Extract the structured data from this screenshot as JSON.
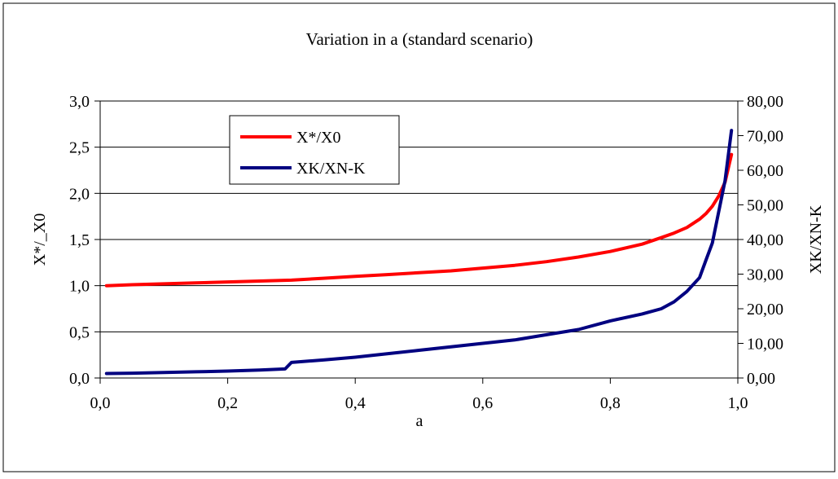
{
  "chart_data": {
    "type": "line",
    "title": "Variation in a (standard scenario)",
    "xlabel": "a",
    "ylabel_left": "X*/_X0",
    "ylabel_right": "XK/XN-K",
    "xlim": [
      0.0,
      1.0
    ],
    "ylim_left": [
      0.0,
      3.0
    ],
    "ylim_right": [
      0.0,
      80.0
    ],
    "x_ticks": [
      "0,0",
      "0,2",
      "0,4",
      "0,6",
      "0,8",
      "1,0"
    ],
    "y_left_ticks": [
      "0,0",
      "0,5",
      "1,0",
      "1,5",
      "2,0",
      "2,5",
      "3,0"
    ],
    "y_right_ticks": [
      "0,00",
      "10,00",
      "20,00",
      "30,00",
      "40,00",
      "50,00",
      "60,00",
      "70,00",
      "80,00"
    ],
    "grid": "horizontal",
    "legend_position": "top-left",
    "series": [
      {
        "name": "X*/X0",
        "axis": "left",
        "color": "#ff0000",
        "x": [
          0.01,
          0.05,
          0.1,
          0.15,
          0.2,
          0.25,
          0.3,
          0.35,
          0.4,
          0.45,
          0.5,
          0.55,
          0.6,
          0.65,
          0.7,
          0.75,
          0.8,
          0.85,
          0.88,
          0.9,
          0.92,
          0.94,
          0.95,
          0.96,
          0.97,
          0.98,
          0.99
        ],
        "y": [
          1.0,
          1.01,
          1.02,
          1.03,
          1.04,
          1.05,
          1.06,
          1.08,
          1.1,
          1.12,
          1.14,
          1.16,
          1.19,
          1.22,
          1.26,
          1.31,
          1.37,
          1.45,
          1.52,
          1.57,
          1.63,
          1.72,
          1.78,
          1.86,
          1.97,
          2.12,
          2.42
        ]
      },
      {
        "name": "XK/XN-K",
        "axis": "right",
        "color": "#000080",
        "x": [
          0.01,
          0.05,
          0.1,
          0.15,
          0.2,
          0.25,
          0.29,
          0.3,
          0.35,
          0.4,
          0.45,
          0.5,
          0.55,
          0.6,
          0.65,
          0.7,
          0.75,
          0.8,
          0.85,
          0.88,
          0.9,
          0.92,
          0.94,
          0.95,
          0.96,
          0.97,
          0.98,
          0.99
        ],
        "y": [
          1.3,
          1.4,
          1.6,
          1.8,
          2.0,
          2.3,
          2.6,
          4.5,
          5.2,
          6.0,
          7.0,
          8.0,
          9.0,
          10.0,
          11.0,
          12.5,
          14.0,
          16.5,
          18.5,
          20.0,
          22.0,
          25.0,
          29.0,
          34.0,
          39.0,
          48.0,
          57.0,
          71.5
        ]
      }
    ]
  }
}
